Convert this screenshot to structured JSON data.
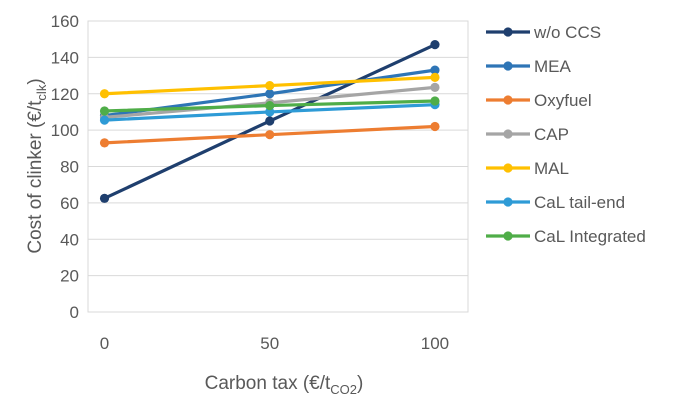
{
  "chart_data": {
    "type": "line",
    "x": [
      0,
      50,
      100
    ],
    "xlim": [
      -5,
      110
    ],
    "ylim": [
      0,
      160
    ],
    "y_ticks": [
      0,
      20,
      40,
      60,
      80,
      100,
      120,
      140,
      160
    ],
    "x_ticks": [
      0,
      50,
      100
    ],
    "x_tick_labels": [
      "0",
      "50",
      "100"
    ],
    "y_tick_labels": [
      "0",
      "20",
      "40",
      "60",
      "80",
      "100",
      "120",
      "140",
      "160"
    ],
    "xlabel": {
      "main": "Carbon tax (€/t",
      "sub": "CO2",
      "suffix": ")"
    },
    "ylabel": {
      "main": "Cost of clinker (€/t",
      "sub": "clk",
      "suffix": ")"
    },
    "grid": "horizontal",
    "legend_position": "right",
    "series": [
      {
        "name": "w/o CCS",
        "color": "#1f3f6e",
        "values": [
          62.5,
          105,
          147
        ]
      },
      {
        "name": "MEA",
        "color": "#2e75b6",
        "values": [
          108,
          120,
          133
        ]
      },
      {
        "name": "Oxyfuel",
        "color": "#ed7d31",
        "values": [
          93,
          97.5,
          102
        ]
      },
      {
        "name": "CAP",
        "color": "#a5a5a5",
        "values": [
          107,
          115,
          123.5
        ]
      },
      {
        "name": "MAL",
        "color": "#ffc000",
        "values": [
          120,
          124.5,
          129
        ]
      },
      {
        "name": "CaL tail-end",
        "color": "#2e9bd6",
        "values": [
          105.5,
          110,
          114
        ]
      },
      {
        "name": "CaL Integrated",
        "color": "#4fad48",
        "values": [
          110.5,
          113.5,
          116
        ]
      }
    ]
  }
}
